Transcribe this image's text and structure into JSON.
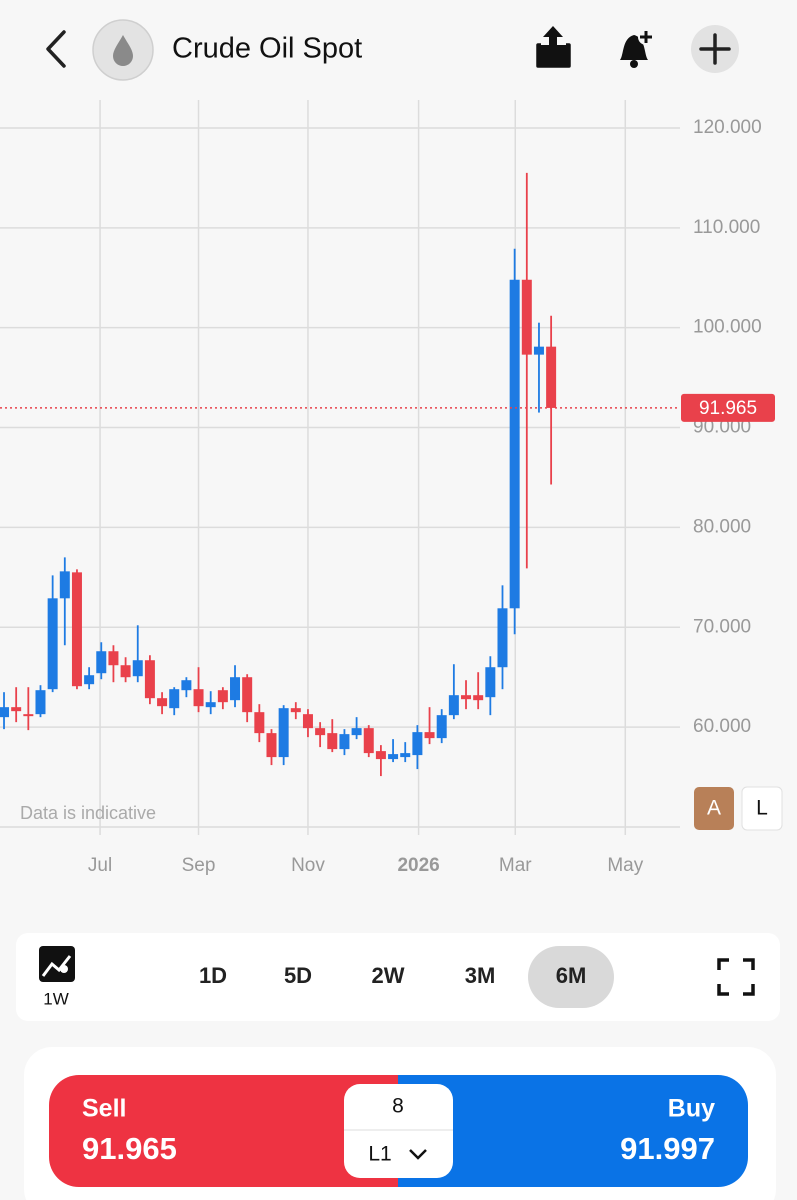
{
  "header": {
    "title": "Crude Oil Spot"
  },
  "chart_data": {
    "type": "candlestick",
    "x": [
      0,
      1,
      2,
      3,
      4,
      5,
      6,
      7,
      8,
      9,
      10,
      11,
      12,
      13,
      14,
      15,
      16,
      17,
      18,
      19,
      20,
      21,
      22,
      23,
      24,
      25,
      26,
      27,
      28,
      29,
      30,
      31,
      32,
      33,
      34,
      35,
      36,
      37,
      38,
      39,
      40,
      41,
      42,
      43,
      44,
      45
    ],
    "open": [
      61.0,
      62.0,
      61.3,
      61.3,
      63.8,
      72.9,
      75.5,
      64.3,
      65.4,
      67.6,
      66.2,
      65.1,
      66.7,
      62.9,
      61.9,
      63.7,
      63.8,
      62.0,
      63.7,
      62.7,
      65.0,
      61.5,
      59.4,
      57.0,
      61.9,
      61.3,
      59.9,
      59.4,
      57.8,
      59.2,
      59.9,
      57.6,
      56.8,
      57.0,
      57.2,
      59.5,
      58.9,
      61.2,
      63.2,
      63.2,
      63.0,
      66.0,
      71.9,
      104.8,
      97.3,
      98.1
    ],
    "high": [
      63.5,
      64.0,
      64.0,
      64.2,
      75.2,
      77.0,
      75.8,
      66.0,
      68.5,
      68.2,
      67.0,
      70.2,
      67.2,
      63.5,
      64.0,
      65.0,
      66.0,
      63.6,
      64.0,
      66.2,
      65.3,
      62.3,
      59.8,
      62.2,
      62.5,
      61.8,
      60.5,
      60.8,
      59.8,
      61.0,
      60.2,
      58.2,
      58.8,
      58.5,
      60.2,
      62.0,
      61.8,
      66.3,
      64.7,
      65.5,
      67.1,
      74.2,
      107.9,
      115.5,
      100.5,
      101.2
    ],
    "low": [
      59.8,
      60.5,
      59.7,
      61.0,
      63.5,
      68.2,
      63.8,
      63.8,
      64.8,
      64.5,
      64.5,
      64.5,
      62.3,
      61.3,
      61.2,
      63.0,
      61.5,
      61.3,
      61.8,
      62.0,
      60.5,
      58.5,
      56.2,
      56.2,
      60.8,
      59.0,
      58.0,
      57.5,
      57.2,
      58.8,
      57.0,
      55.1,
      56.5,
      56.5,
      55.8,
      58.3,
      58.4,
      60.8,
      61.8,
      61.8,
      61.2,
      63.8,
      69.3,
      75.9,
      91.5,
      84.3
    ],
    "close": [
      62.0,
      61.6,
      61.1,
      63.7,
      72.9,
      75.6,
      64.1,
      65.2,
      67.6,
      66.2,
      65.0,
      66.7,
      62.9,
      62.1,
      63.8,
      64.7,
      62.1,
      62.5,
      62.5,
      65.0,
      61.5,
      59.4,
      57.0,
      61.9,
      61.5,
      59.9,
      59.2,
      57.8,
      59.3,
      59.9,
      57.4,
      56.8,
      57.3,
      57.4,
      59.5,
      58.9,
      61.2,
      63.2,
      62.8,
      62.7,
      66.0,
      71.9,
      104.8,
      97.3,
      98.1,
      91.965
    ],
    "up_color": "#1e7be3",
    "down_color": "#e9414b",
    "xlim": [
      -0.33,
      55.6
    ],
    "xticks": [
      {
        "value": 7.9,
        "label": "Jul"
      },
      {
        "value": 16.0,
        "label": "Sep"
      },
      {
        "value": 25.0,
        "label": "Nov"
      },
      {
        "value": 34.1,
        "label": "2026"
      },
      {
        "value": 42.05,
        "label": "Mar"
      },
      {
        "value": 51.1,
        "label": "May"
      }
    ],
    "ylim": [
      50,
      123
    ],
    "yticks": [
      {
        "value": 60,
        "label": "60.000"
      },
      {
        "value": 70,
        "label": "70.000"
      },
      {
        "value": 80,
        "label": "80.000"
      },
      {
        "value": 90,
        "label": "90.000"
      },
      {
        "value": 100,
        "label": "100.000"
      },
      {
        "value": 110,
        "label": "110.000"
      },
      {
        "value": 120,
        "label": "120.000"
      }
    ],
    "grid": true,
    "last_price": 91.965,
    "last_price_color": "#e9414b",
    "note": "Data is indicative"
  },
  "chart_controls": [
    "A",
    "L"
  ],
  "interval": "1W",
  "timeframes": {
    "options": [
      "1D",
      "5D",
      "2W",
      "3M",
      "6M"
    ],
    "selected": 4
  },
  "trade": {
    "sell_label": "Sell",
    "sell_price": 91.965,
    "buy_label": "Buy",
    "buy_price": 91.997,
    "quantity": 8,
    "lot": "L1"
  }
}
